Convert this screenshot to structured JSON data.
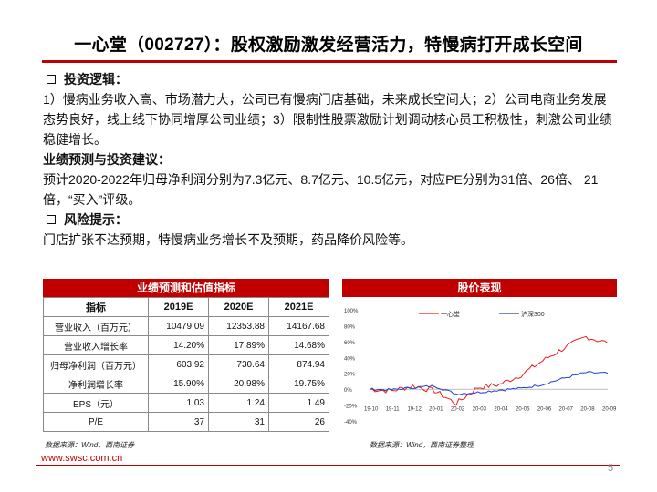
{
  "title": "一心堂（002727）：股权激励激发经营活力，特慢病打开成长空间",
  "sections": {
    "invest_logic_head": "投资逻辑：",
    "invest_logic_text": "1）慢病业务收入高、市场潜力大，公司已有慢病门店基础，未来成长空间大；2）公司电商业务发展态势良好，线上线下协同增厚公司业绩；3）限制性股票激励计划调动核心员工积极性，刺激公司业绩稳健增长。",
    "forecast_head": "业绩预测与投资建议：",
    "forecast_text": "预计2020-2022年归母净利润分别为7.3亿元、8.7亿元、10.5亿元，对应PE分别为31倍、26倍、 21倍，“买入”评级。",
    "risk_head": "风险提示：",
    "risk_text": "门店扩张不达预期，特慢病业务增长不及预期，药品降价风险等。"
  },
  "table": {
    "title": "业绩预测和估值指标",
    "headers": [
      "指标",
      "2019E",
      "2020E",
      "2021E"
    ],
    "rows": [
      [
        "营业收入（百万元）",
        "10479.09",
        "12353.88",
        "14167.68"
      ],
      [
        "营业收入增长率",
        "14.20%",
        "17.89%",
        "14.68%"
      ],
      [
        "归母净利润（百万元）",
        "603.92",
        "730.64",
        "874.94"
      ],
      [
        "净利润增长率",
        "15.90%",
        "20.98%",
        "19.75%"
      ],
      [
        "EPS（元）",
        "1.03",
        "1.24",
        "1.49"
      ],
      [
        "P/E",
        "37",
        "31",
        "26"
      ]
    ],
    "source": "数据来源：Wind，西南证券"
  },
  "chart_title": "股价表现",
  "chart_source": "数据来源：Wind，西南证券整理",
  "chart_data": {
    "type": "line",
    "x": [
      "19-10",
      "19-11",
      "19-12",
      "20-01",
      "20-02",
      "20-03",
      "20-04",
      "20-05",
      "20-06",
      "20-07",
      "20-08",
      "20-09"
    ],
    "ylim": [
      -40,
      100
    ],
    "yticks": [
      "100%",
      "80%",
      "60%",
      "40%",
      "20%",
      "0%",
      "-20%",
      "-40%"
    ],
    "series": [
      {
        "name": "一心堂",
        "color": "#ee1c1c",
        "values": [
          0,
          -2,
          4,
          -2,
          -18,
          2,
          6,
          18,
          36,
          52,
          66,
          58
        ]
      },
      {
        "name": "沪深300",
        "color": "#1f3fcc",
        "values": [
          0,
          -1,
          2,
          4,
          -6,
          -4,
          -1,
          1,
          6,
          14,
          21,
          20
        ]
      }
    ]
  },
  "footer": {
    "site": "www.swsc.com.cn",
    "page": "5"
  }
}
